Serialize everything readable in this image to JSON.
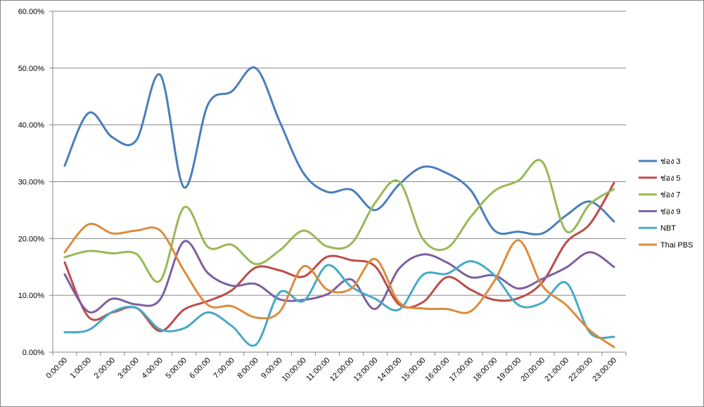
{
  "chart_data": {
    "type": "line",
    "smooth": true,
    "categories": [
      "0:00:00",
      "1:00:00",
      "2:00:00",
      "3:00:00",
      "4:00:00",
      "5:00:00",
      "6:00:00",
      "7:00:00",
      "8:00:00",
      "9:00:00",
      "10:00:00",
      "11:00:00",
      "12:00:00",
      "13:00:00",
      "14:00:00",
      "15:00:00",
      "16:00:00",
      "17:00:00",
      "18:00:00",
      "19:00:00",
      "20:00:00",
      "21:00:00",
      "22:00:00",
      "23:00:00"
    ],
    "y_ticks": [
      "0.00%",
      "10.00%",
      "20.00%",
      "30.00%",
      "40.00%",
      "50.00%",
      "60.00%"
    ],
    "ylim": [
      0,
      60
    ],
    "grid": true,
    "legend_position": "right",
    "series": [
      {
        "name": "ช่อง 3",
        "color": "#4a7ebb",
        "values": [
          32.8,
          42.1,
          37.8,
          37.3,
          48.8,
          29.0,
          43.6,
          45.9,
          50.0,
          40.6,
          31.5,
          28.2,
          28.6,
          25.0,
          29.5,
          32.6,
          31.5,
          28.5,
          21.4,
          21.2,
          20.9,
          24.1,
          26.5,
          23.0
        ]
      },
      {
        "name": "ช่อง 5",
        "color": "#be4b48",
        "values": [
          15.8,
          6.2,
          7.0,
          7.8,
          3.7,
          7.5,
          9.0,
          10.9,
          14.9,
          14.4,
          13.3,
          16.8,
          16.2,
          15.1,
          8.4,
          8.8,
          13.2,
          11.0,
          9.2,
          9.5,
          12.3,
          19.3,
          22.6,
          29.8
        ]
      },
      {
        "name": "ช่อง 7",
        "color": "#98b954",
        "values": [
          16.7,
          17.8,
          17.4,
          17.3,
          12.6,
          25.5,
          18.5,
          18.9,
          15.5,
          17.9,
          21.4,
          18.6,
          19.1,
          26.3,
          30.0,
          19.9,
          18.3,
          23.8,
          28.4,
          30.2,
          33.5,
          21.3,
          26.1,
          28.7
        ]
      },
      {
        "name": "ช่อง 9",
        "color": "#7d60a0",
        "values": [
          13.7,
          7.1,
          9.4,
          8.4,
          9.3,
          19.5,
          13.9,
          11.7,
          12.0,
          9.3,
          9.2,
          10.2,
          12.8,
          7.6,
          14.7,
          17.2,
          15.8,
          13.2,
          13.5,
          11.2,
          12.9,
          14.9,
          17.6,
          15.0
        ]
      },
      {
        "name": "NBT",
        "color": "#46aac5",
        "values": [
          3.5,
          3.9,
          7.1,
          7.8,
          4.0,
          4.2,
          7.0,
          4.6,
          1.3,
          10.5,
          9.0,
          15.3,
          11.5,
          9.4,
          7.5,
          13.6,
          13.8,
          16.0,
          13.5,
          8.3,
          8.7,
          12.2,
          3.4,
          2.7
        ]
      },
      {
        "name": "Thai PBS",
        "color": "#dd8b3c",
        "values": [
          17.6,
          22.5,
          20.9,
          21.4,
          21.4,
          14.3,
          8.3,
          8.1,
          6.1,
          7.1,
          15.1,
          11.0,
          11.2,
          16.4,
          8.8,
          7.7,
          7.6,
          7.2,
          12.6,
          19.7,
          11.7,
          8.3,
          3.8,
          0.9
        ]
      }
    ]
  }
}
